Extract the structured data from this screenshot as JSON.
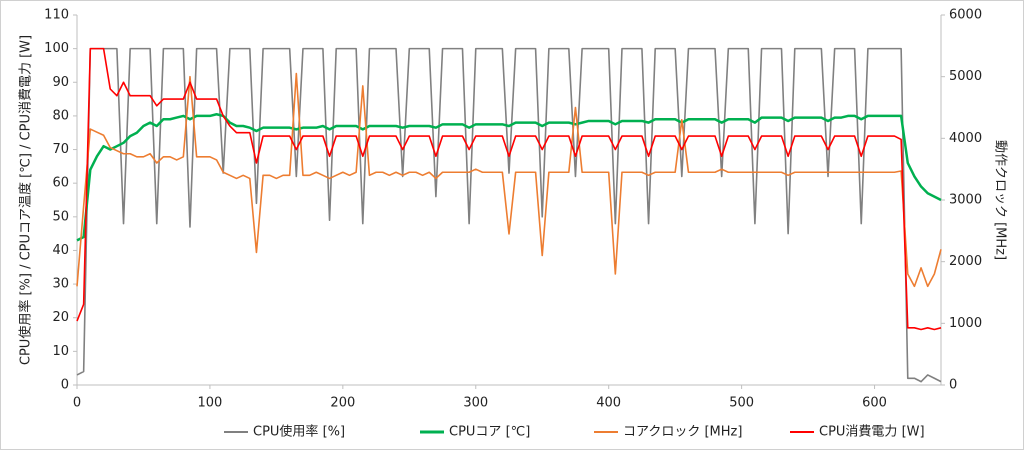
{
  "chart_data": {
    "type": "line",
    "y_label": "CPU使用率 [%] / CPUコア温度 [℃] / CPU消費電力 [W]",
    "y2_label": "動作クロック [MHz]",
    "xlim": [
      0,
      650
    ],
    "xticks": [
      0,
      100,
      200,
      300,
      400,
      500,
      600
    ],
    "ylim": [
      0,
      110
    ],
    "yticks": [
      0,
      10,
      20,
      30,
      40,
      50,
      60,
      70,
      80,
      90,
      100,
      110
    ],
    "y2lim": [
      0,
      6000
    ],
    "y2ticks": [
      0,
      1000,
      2000,
      3000,
      4000,
      5000,
      6000
    ],
    "grid": false,
    "legend": "bottom",
    "x": [
      0,
      5,
      10,
      15,
      20,
      25,
      30,
      35,
      40,
      45,
      50,
      55,
      60,
      65,
      70,
      75,
      80,
      85,
      90,
      95,
      100,
      105,
      110,
      115,
      120,
      125,
      130,
      135,
      140,
      145,
      150,
      155,
      160,
      165,
      170,
      175,
      180,
      185,
      190,
      195,
      200,
      205,
      210,
      215,
      220,
      225,
      230,
      235,
      240,
      245,
      250,
      255,
      260,
      265,
      270,
      275,
      280,
      285,
      290,
      295,
      300,
      305,
      310,
      315,
      320,
      325,
      330,
      335,
      340,
      345,
      350,
      355,
      360,
      365,
      370,
      375,
      380,
      385,
      390,
      395,
      400,
      405,
      410,
      415,
      420,
      425,
      430,
      435,
      440,
      445,
      450,
      455,
      460,
      465,
      470,
      475,
      480,
      485,
      490,
      495,
      500,
      505,
      510,
      515,
      520,
      525,
      530,
      535,
      540,
      545,
      550,
      555,
      560,
      565,
      570,
      575,
      580,
      585,
      590,
      595,
      600,
      605,
      610,
      615,
      620,
      625,
      630,
      635,
      640,
      645,
      650
    ],
    "series": [
      {
        "name": "CPU使用率 [%]",
        "color": "#808080",
        "values": [
          3,
          4,
          100,
          100,
          100,
          100,
          100,
          48,
          100,
          100,
          100,
          100,
          48,
          100,
          100,
          100,
          100,
          47,
          100,
          100,
          100,
          100,
          63,
          100,
          100,
          100,
          100,
          54,
          100,
          100,
          100,
          100,
          100,
          62,
          100,
          100,
          100,
          100,
          49,
          100,
          100,
          100,
          100,
          48,
          100,
          100,
          100,
          100,
          100,
          62,
          100,
          100,
          100,
          100,
          56,
          100,
          100,
          100,
          100,
          48,
          100,
          100,
          100,
          100,
          100,
          63,
          100,
          100,
          100,
          100,
          50,
          100,
          100,
          100,
          100,
          62,
          100,
          100,
          100,
          100,
          100,
          48,
          100,
          100,
          100,
          100,
          48,
          100,
          100,
          100,
          100,
          62,
          100,
          100,
          100,
          100,
          100,
          62,
          100,
          100,
          100,
          100,
          48,
          100,
          100,
          100,
          100,
          45,
          100,
          100,
          100,
          100,
          100,
          62,
          100,
          100,
          100,
          100,
          48,
          100,
          100,
          100,
          100,
          100,
          100,
          2,
          2,
          1,
          3,
          2,
          1
        ]
      },
      {
        "name": "CPUコア [℃]",
        "color": "#00b050",
        "values": [
          43,
          44,
          64,
          68,
          71,
          70,
          71,
          72,
          74,
          75,
          77,
          78,
          77,
          79,
          79,
          79.5,
          80,
          79,
          80,
          80,
          80,
          80.5,
          80,
          78,
          77,
          77,
          76.5,
          75.5,
          76.5,
          76.5,
          76.5,
          76.5,
          76.5,
          76,
          76.5,
          76.5,
          76.5,
          77,
          76,
          77,
          77,
          77,
          77,
          76,
          77,
          77,
          77,
          77,
          77,
          76.5,
          77,
          77,
          77,
          77,
          76.5,
          77.5,
          77.5,
          77.5,
          77.5,
          76.5,
          77.5,
          77.5,
          77.5,
          77.5,
          77.5,
          77,
          78,
          78,
          78,
          78,
          77,
          78,
          78,
          78,
          78,
          77.5,
          78,
          78.5,
          78.5,
          78.5,
          78.5,
          77.5,
          78.5,
          78.5,
          78.5,
          78.5,
          78,
          79,
          79,
          79,
          79,
          78,
          79,
          79,
          79,
          79,
          79,
          78,
          79,
          79,
          79,
          79,
          78,
          79.5,
          79.5,
          79.5,
          79.5,
          78.5,
          79.5,
          79.5,
          79.5,
          79.5,
          79.5,
          78.5,
          79.5,
          79.5,
          80,
          80,
          79,
          80,
          80,
          80,
          80,
          80,
          80,
          66,
          62,
          59,
          57,
          56,
          55
        ]
      },
      {
        "name": "コアクロック [MHz]",
        "color": "#ed7d31",
        "axis": "y2",
        "values": [
          1600,
          2900,
          4150,
          4100,
          4050,
          3850,
          3800,
          3750,
          3750,
          3700,
          3700,
          3750,
          3600,
          3700,
          3700,
          3650,
          3700,
          5000,
          3700,
          3700,
          3700,
          3650,
          3450,
          3400,
          3350,
          3400,
          3350,
          2150,
          3400,
          3400,
          3350,
          3400,
          3400,
          5050,
          3400,
          3400,
          3450,
          3400,
          3350,
          3400,
          3450,
          3400,
          3450,
          4850,
          3400,
          3450,
          3450,
          3400,
          3450,
          3400,
          3450,
          3450,
          3400,
          3450,
          3350,
          3450,
          3450,
          3450,
          3450,
          3450,
          3500,
          3450,
          3450,
          3450,
          3450,
          2450,
          3450,
          3450,
          3450,
          3450,
          2100,
          3450,
          3450,
          3450,
          3450,
          4500,
          3450,
          3450,
          3450,
          3450,
          3450,
          1800,
          3450,
          3450,
          3450,
          3450,
          3400,
          3450,
          3450,
          3450,
          3450,
          4300,
          3450,
          3450,
          3450,
          3450,
          3450,
          3500,
          3450,
          3450,
          3450,
          3450,
          3450,
          3450,
          3450,
          3450,
          3450,
          3400,
          3450,
          3450,
          3450,
          3450,
          3450,
          3450,
          3450,
          3450,
          3450,
          3450,
          3450,
          3450,
          3450,
          3450,
          3450,
          3450,
          3470,
          1800,
          1600,
          1900,
          1600,
          1800,
          2200
        ]
      },
      {
        "name": "CPU消費電力 [W]",
        "color": "#ff0000",
        "values": [
          19,
          24,
          100,
          100,
          100,
          88,
          86,
          90,
          86,
          86,
          86,
          86,
          83,
          85,
          85,
          85,
          85,
          90,
          85,
          85,
          85,
          85,
          80,
          77,
          75,
          75,
          75,
          66,
          74,
          74,
          74,
          74,
          74,
          70,
          74,
          74,
          74,
          74,
          68,
          74,
          74,
          74,
          74,
          68,
          74,
          74,
          74,
          74,
          74,
          70,
          74,
          74,
          74,
          74,
          68,
          74,
          74,
          74,
          74,
          70,
          74,
          74,
          74,
          74,
          74,
          68,
          74,
          74,
          74,
          74,
          70,
          74,
          74,
          74,
          74,
          68,
          74,
          74,
          74,
          74,
          74,
          70,
          74,
          74,
          74,
          74,
          68,
          74,
          74,
          74,
          74,
          70,
          74,
          74,
          74,
          74,
          74,
          68,
          74,
          74,
          74,
          74,
          70,
          74,
          74,
          74,
          74,
          68,
          74,
          74,
          74,
          74,
          74,
          70,
          74,
          74,
          74,
          74,
          68,
          74,
          74,
          74,
          74,
          74,
          73,
          17,
          17,
          16.5,
          17,
          16.5,
          17
        ]
      }
    ]
  }
}
